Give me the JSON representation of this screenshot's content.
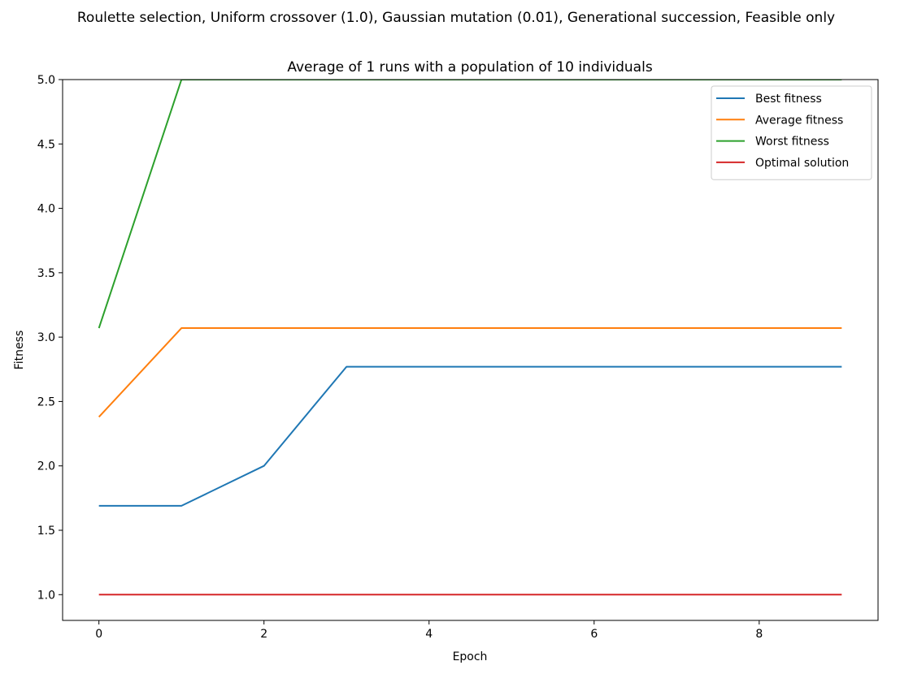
{
  "figure": {
    "suptitle": "Roulette selection, Uniform crossover (1.0), Gaussian mutation (0.01), Generational succession, Feasible only"
  },
  "chart_data": {
    "type": "line",
    "title": "Average of 1 runs with a population of 10 individuals",
    "xlabel": "Epoch",
    "ylabel": "Fitness",
    "xlim": [
      -0.44,
      9.44
    ],
    "ylim": [
      0.8,
      5.0
    ],
    "x_ticks": [
      0,
      2,
      4,
      6,
      8
    ],
    "x_tick_labels": [
      "0",
      "2",
      "4",
      "6",
      "8"
    ],
    "y_ticks": [
      1.0,
      1.5,
      2.0,
      2.5,
      3.0,
      3.5,
      4.0,
      4.5,
      5.0
    ],
    "y_tick_labels": [
      "1.0",
      "1.5",
      "2.0",
      "2.5",
      "3.0",
      "3.5",
      "4.0",
      "4.5",
      "5.0"
    ],
    "grid": false,
    "legend_position": "top-right",
    "x": [
      0,
      1,
      2,
      3,
      4,
      5,
      6,
      7,
      8,
      9
    ],
    "series": [
      {
        "name": "Best fitness",
        "color": "#1f77b4",
        "values": [
          1.69,
          1.69,
          2.0,
          2.77,
          2.77,
          2.77,
          2.77,
          2.77,
          2.77,
          2.77
        ]
      },
      {
        "name": "Average fitness",
        "color": "#ff7f0e",
        "values": [
          2.38,
          3.07,
          3.07,
          3.07,
          3.07,
          3.07,
          3.07,
          3.07,
          3.07,
          3.07
        ]
      },
      {
        "name": "Worst fitness",
        "color": "#2ca02c",
        "values": [
          3.07,
          5.0,
          5.0,
          5.0,
          5.0,
          5.0,
          5.0,
          5.0,
          5.0,
          5.0
        ]
      },
      {
        "name": "Optimal solution",
        "color": "#d62728",
        "values": [
          1.0,
          1.0,
          1.0,
          1.0,
          1.0,
          1.0,
          1.0,
          1.0,
          1.0,
          1.0
        ]
      }
    ]
  }
}
